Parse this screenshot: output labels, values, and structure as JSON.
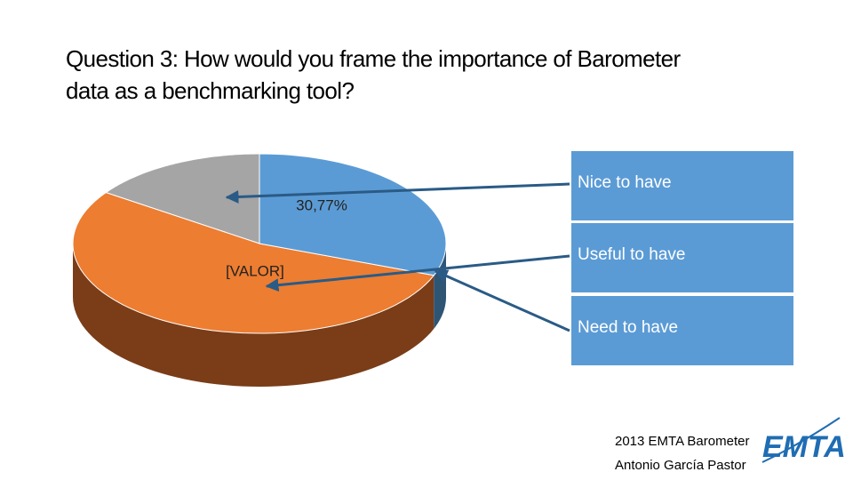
{
  "chart_data": {
    "type": "pie",
    "title": "Question 3: How would you frame the importance of Barometer data as a benchmarking tool?",
    "categories": [
      "Nice to have",
      "Useful to have",
      "Need to have"
    ],
    "values": [
      15.38,
      53.85,
      30.77
    ],
    "value_labels": [
      null,
      "[VALOR]",
      "30,77%"
    ],
    "colors": [
      "#a5a5a5",
      "#ed7d31",
      "#5b9bd5"
    ],
    "side_colors": [
      "#6e6e6e",
      "#7a3d18",
      "#2f5575"
    ],
    "legend_color": "#5b9bd5"
  },
  "footer": {
    "lines": [
      "2013 EMTA Barometer",
      "Antonio García Pastor"
    ],
    "logo": "EMTA"
  }
}
